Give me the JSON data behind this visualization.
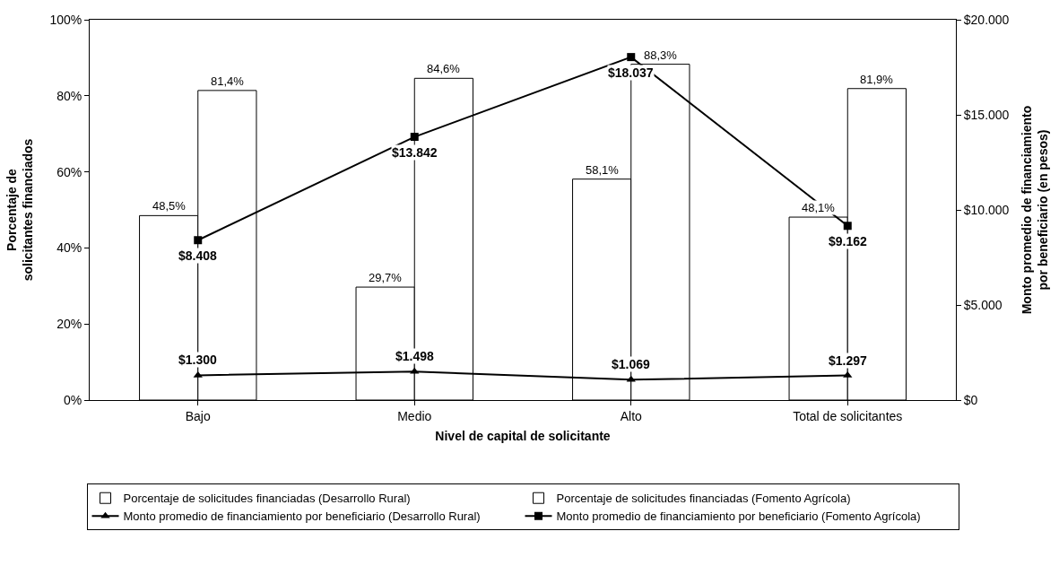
{
  "chart_data": {
    "type": "bar",
    "xlabel": "Nivel de capital de solicitante",
    "ylabel": "Porcentaje de solicitantes financiados",
    "y2label": "Monto promedio de financiamiento por beneficiario (en pesos)",
    "categories": [
      "Bajo",
      "Medio",
      "Alto",
      "Total de solicitantes"
    ],
    "series": [
      {
        "name": "Porcentaje de solicitudes financiadas (Desarrollo Rural)",
        "color": "#ffffff",
        "values": [
          48.5,
          29.7,
          58.1,
          48.1
        ],
        "value_labels": [
          "48,5%",
          "29,7%",
          "58,1%",
          "48,1%"
        ]
      },
      {
        "name": "Porcentaje de solicitudes financiadas (Fomento Agrícola)",
        "color": "#ffffff",
        "values": [
          81.4,
          84.6,
          88.3,
          81.9
        ],
        "value_labels": [
          "81,4%",
          "84,6%",
          "88,3%",
          "81,9%"
        ]
      },
      {
        "name": "Monto promedio de financiamiento por beneficiario (Desarrollo Rural)",
        "type": "line",
        "axis": "y2",
        "marker": "triangle",
        "color": "#000000",
        "values": [
          1300,
          1498,
          1069,
          1297
        ],
        "value_labels": [
          "$1.300",
          "$1.498",
          "$1.069",
          "$1.297"
        ]
      },
      {
        "name": "Monto promedio de financiamiento por beneficiario (Fomento Agrícola)",
        "type": "line",
        "axis": "y2",
        "marker": "square",
        "color": "#000000",
        "values": [
          8408,
          13842,
          18037,
          9162
        ],
        "value_labels": [
          "$8.408",
          "$13.842",
          "$18.037",
          "$9.162"
        ]
      }
    ],
    "ylim": [
      0,
      100
    ],
    "yticks": [
      {
        "value": 0,
        "label": "0%"
      },
      {
        "value": 20,
        "label": "20%"
      },
      {
        "value": 40,
        "label": "40%"
      },
      {
        "value": 60,
        "label": "60%"
      },
      {
        "value": 80,
        "label": "80%"
      },
      {
        "value": 100,
        "label": "100%"
      }
    ],
    "y2lim": [
      0,
      20000
    ],
    "y2ticks": [
      {
        "value": 0,
        "label": "$0"
      },
      {
        "value": 5000,
        "label": "$5.000"
      },
      {
        "value": 10000,
        "label": "$10.000"
      },
      {
        "value": 15000,
        "label": "$15.000"
      },
      {
        "value": 20000,
        "label": "$20.000"
      }
    ],
    "grid": false,
    "legend": "bottom"
  }
}
